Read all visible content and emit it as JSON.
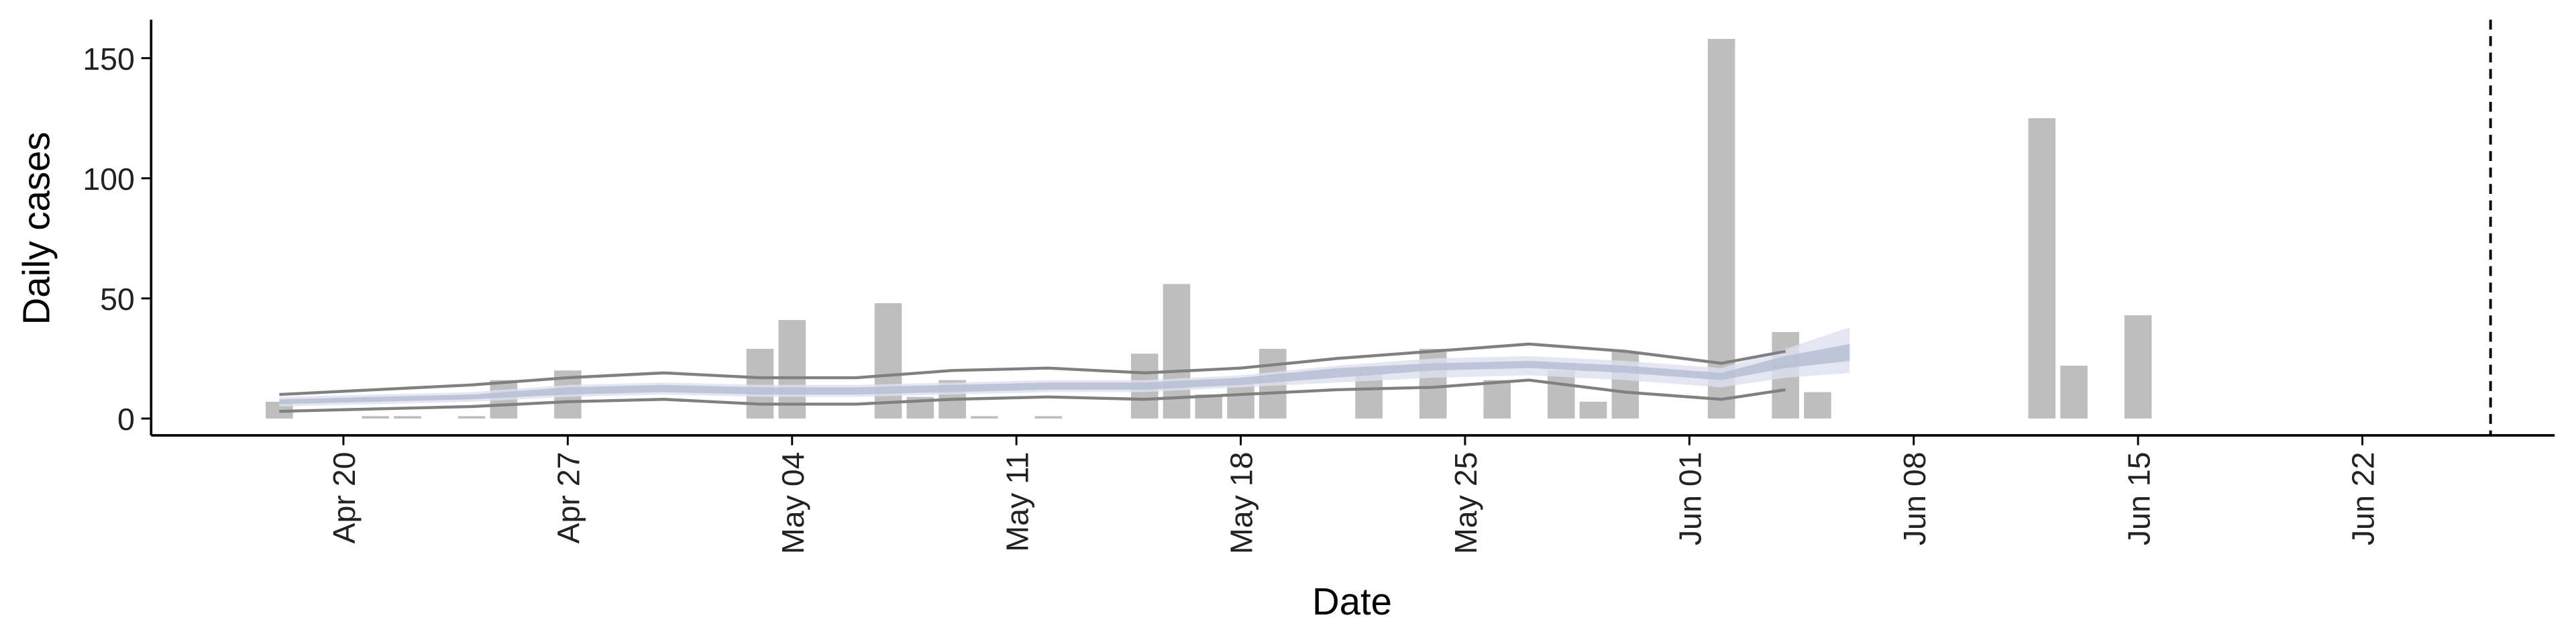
{
  "chart_data": {
    "type": "bar",
    "x_label": "Date",
    "y_label": "Daily cases",
    "xlim": [
      "Apr 14",
      "Jun 28"
    ],
    "xticks": [
      "Apr 20",
      "Apr 27",
      "May 04",
      "May 11",
      "May 18",
      "May 25",
      "Jun 01",
      "Jun 08",
      "Jun 15",
      "Jun 22"
    ],
    "ylim": [
      -7,
      166
    ],
    "yticks": [
      0,
      50,
      100,
      150
    ],
    "grid": false,
    "bars": {
      "color": "#bebebe",
      "x": [
        "Apr 18",
        "Apr 21",
        "Apr 22",
        "Apr 24",
        "Apr 25",
        "Apr 27",
        "May 03",
        "May 04",
        "May 07",
        "May 08",
        "May 09",
        "May 10",
        "May 12",
        "May 15",
        "May 16",
        "May 17",
        "May 18",
        "May 19",
        "May 22",
        "May 24",
        "May 26",
        "May 28",
        "May 29",
        "May 30",
        "Jun 02",
        "Jun 04",
        "Jun 05",
        "Jun 12",
        "Jun 13",
        "Jun 15"
      ],
      "values": [
        7,
        1,
        1,
        1,
        16,
        20,
        29,
        41,
        48,
        9,
        16,
        1,
        1,
        27,
        56,
        10,
        15,
        29,
        19,
        29,
        16,
        20,
        7,
        28,
        158,
        36,
        11,
        125,
        22,
        43
      ]
    },
    "band_x": [
      "Apr 18",
      "Apr 21",
      "Apr 24",
      "Apr 27",
      "Apr 30",
      "May 03",
      "May 06",
      "May 09",
      "May 12",
      "May 15",
      "May 18",
      "May 21",
      "May 24",
      "May 27",
      "May 30",
      "Jun 02",
      "Jun 04",
      "Jun 06"
    ],
    "ribbons": [
      {
        "color": "#dde1ee",
        "lower": [
          5,
          6,
          7,
          9,
          10,
          9,
          9,
          10,
          11,
          11,
          13,
          15,
          17,
          18,
          16,
          13,
          17,
          19
        ],
        "upper": [
          9,
          10,
          11,
          14,
          15,
          14,
          14,
          15,
          16,
          16,
          18,
          22,
          25,
          26,
          24,
          21,
          29,
          38
        ]
      },
      {
        "color": "#b4bdd6",
        "lower": [
          6,
          7,
          8,
          10,
          11,
          10,
          10,
          11,
          12,
          12,
          14,
          17,
          20,
          21,
          19,
          16,
          21,
          24
        ],
        "upper": [
          8,
          9,
          10,
          13,
          14,
          13,
          13,
          14,
          15,
          15,
          17,
          21,
          23,
          24,
          22,
          19,
          26,
          31
        ]
      }
    ],
    "lines": [
      {
        "color": "#808080",
        "values": [
          10,
          12,
          14,
          17,
          19,
          17,
          17,
          20,
          21,
          19,
          21,
          25,
          28,
          31,
          28,
          23,
          28,
          null
        ]
      },
      {
        "color": "#808080",
        "values": [
          3,
          4,
          5,
          7,
          8,
          6,
          6,
          8,
          9,
          8,
          10,
          12,
          13,
          16,
          11,
          8,
          12,
          null
        ]
      }
    ],
    "vline": "Jun 26"
  }
}
